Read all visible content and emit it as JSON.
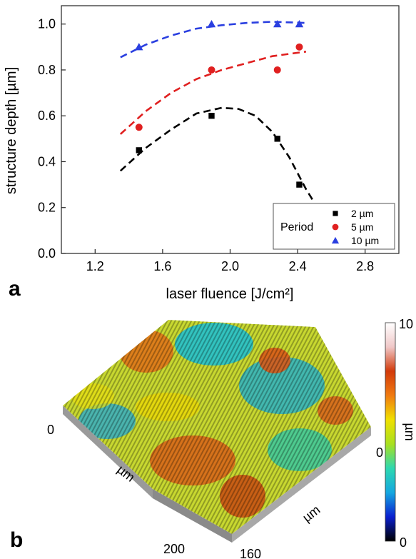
{
  "chart_data": [
    {
      "type": "scatter",
      "panel_label": "a",
      "xlabel": "laser fluence [J/cm²]",
      "ylabel": "structure depth [µm]",
      "xlim": [
        1.0,
        3.0
      ],
      "ylim": [
        0.0,
        1.08
      ],
      "xticks": [
        "1.2",
        "1.6",
        "2.0",
        "2.4",
        "2.8"
      ],
      "yticks": [
        "0.0",
        "0.2",
        "0.4",
        "0.6",
        "0.8",
        "1.0"
      ],
      "grid": false,
      "legend_title": "Period",
      "legend_position": "bottom-right",
      "series": [
        {
          "name": "2 µm",
          "color": "#000000",
          "marker": "square",
          "points": [
            [
              1.46,
              0.45
            ],
            [
              1.89,
              0.6
            ],
            [
              2.28,
              0.5
            ],
            [
              2.41,
              0.3
            ]
          ],
          "fit": [
            [
              1.35,
              0.36
            ],
            [
              1.5,
              0.46
            ],
            [
              1.65,
              0.54
            ],
            [
              1.8,
              0.61
            ],
            [
              1.95,
              0.635
            ],
            [
              2.05,
              0.63
            ],
            [
              2.15,
              0.6
            ],
            [
              2.25,
              0.53
            ],
            [
              2.35,
              0.42
            ],
            [
              2.45,
              0.28
            ],
            [
              2.5,
              0.22
            ]
          ]
        },
        {
          "name": "5 µm",
          "color": "#e02020",
          "marker": "circle",
          "points": [
            [
              1.46,
              0.55
            ],
            [
              1.89,
              0.8
            ],
            [
              2.28,
              0.8
            ],
            [
              2.41,
              0.9
            ]
          ],
          "fit": [
            [
              1.35,
              0.52
            ],
            [
              1.5,
              0.62
            ],
            [
              1.65,
              0.7
            ],
            [
              1.8,
              0.76
            ],
            [
              1.95,
              0.8
            ],
            [
              2.1,
              0.83
            ],
            [
              2.25,
              0.86
            ],
            [
              2.45,
              0.88
            ]
          ]
        },
        {
          "name": "10 µm",
          "color": "#2a3fe0",
          "marker": "triangle",
          "points": [
            [
              1.46,
              0.9
            ],
            [
              1.89,
              1.0
            ],
            [
              2.28,
              1.0
            ],
            [
              2.41,
              1.0
            ]
          ],
          "fit": [
            [
              1.35,
              0.855
            ],
            [
              1.5,
              0.91
            ],
            [
              1.65,
              0.95
            ],
            [
              1.8,
              0.98
            ],
            [
              1.95,
              0.995
            ],
            [
              2.1,
              1.005
            ],
            [
              2.25,
              1.01
            ],
            [
              2.45,
              1.005
            ]
          ]
        }
      ]
    },
    {
      "type": "surface-3d",
      "panel_label": "b",
      "x_axis_label": "µm",
      "x_ticks": [
        "0",
        "200"
      ],
      "y_axis_label": "µm",
      "y_ticks": [
        "0",
        "160"
      ],
      "colorbar_label": "µm",
      "colorbar_min": "0",
      "colorbar_max": "10",
      "colormap": [
        "#000000",
        "#0a1fd0",
        "#14a7e0",
        "#2dd8b0",
        "#a8e020",
        "#f0e000",
        "#f07a10",
        "#d23a0a",
        "#f0c8c8",
        "#ffffff"
      ]
    }
  ]
}
